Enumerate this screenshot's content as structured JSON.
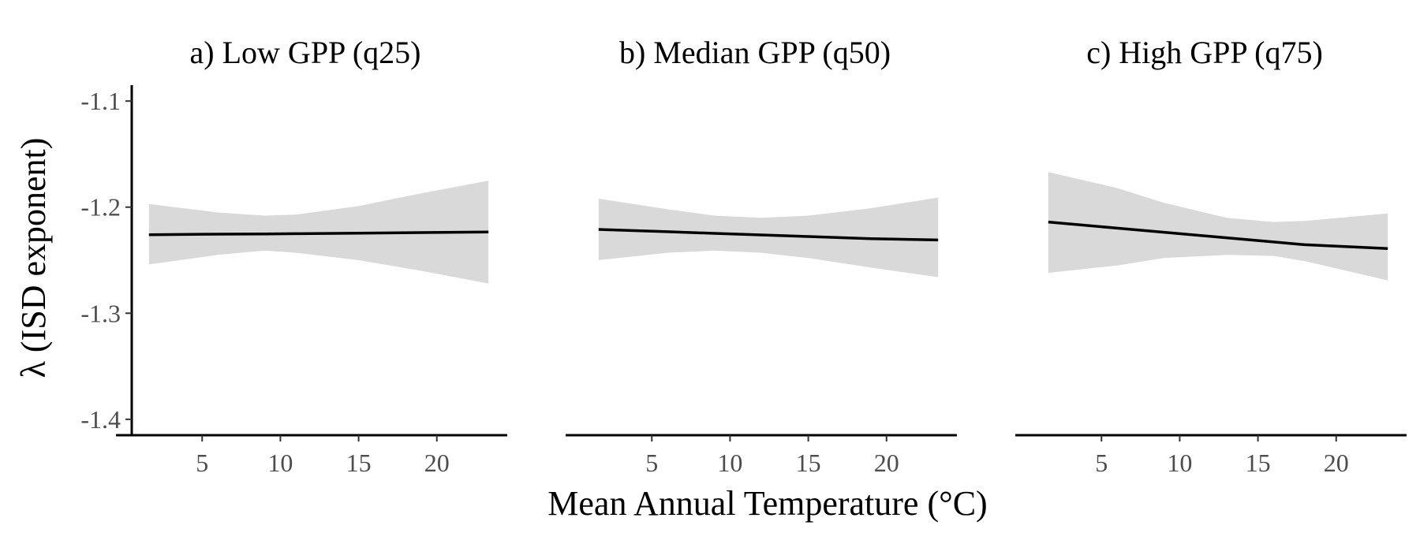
{
  "chart_data": {
    "type": "line",
    "ylabel": "λ (ISD exponent)",
    "xlabel": "Mean Annual Temperature (°C)",
    "xlim": [
      0.5,
      24.5
    ],
    "ylim": [
      -1.415,
      -1.085
    ],
    "xticks": [
      5,
      10,
      15,
      20
    ],
    "yticks": [
      -1.1,
      -1.2,
      -1.3,
      -1.4
    ],
    "ytick_labels": [
      "-1.1",
      "-1.2",
      "-1.3",
      "-1.4"
    ],
    "xtick_labels": [
      "5",
      "10",
      "15",
      "20"
    ],
    "grid": false,
    "line_color": "#000000",
    "band_color": "#d9d9d9",
    "panels": [
      {
        "title": "a) Low GPP (q25)",
        "x": [
          1.6,
          6,
          9,
          11,
          15,
          19,
          23.3
        ],
        "fit": [
          -1.226,
          -1.2255,
          -1.2253,
          -1.225,
          -1.2245,
          -1.224,
          -1.2235
        ],
        "lower": [
          -1.254,
          -1.245,
          -1.241,
          -1.243,
          -1.25,
          -1.26,
          -1.272
        ],
        "upper": [
          -1.197,
          -1.205,
          -1.208,
          -1.207,
          -1.199,
          -1.187,
          -1.175
        ]
      },
      {
        "title": "b) Median GPP (q50)",
        "x": [
          1.6,
          6,
          9,
          12,
          15,
          19,
          23.3
        ],
        "fit": [
          -1.221,
          -1.2232,
          -1.2247,
          -1.2262,
          -1.2277,
          -1.2297,
          -1.231
        ],
        "lower": [
          -1.25,
          -1.243,
          -1.241,
          -1.243,
          -1.248,
          -1.257,
          -1.266
        ],
        "upper": [
          -1.192,
          -1.202,
          -1.208,
          -1.21,
          -1.208,
          -1.201,
          -1.191
        ]
      },
      {
        "title": "c) High GPP (q75)",
        "x": [
          1.6,
          6,
          9,
          13,
          16,
          18,
          23.3
        ],
        "fit": [
          -1.214,
          -1.2198,
          -1.2237,
          -1.2289,
          -1.2328,
          -1.2354,
          -1.239
        ],
        "lower": [
          -1.262,
          -1.255,
          -1.248,
          -1.245,
          -1.246,
          -1.251,
          -1.269
        ],
        "upper": [
          -1.167,
          -1.182,
          -1.196,
          -1.21,
          -1.214,
          -1.213,
          -1.206
        ]
      }
    ]
  }
}
